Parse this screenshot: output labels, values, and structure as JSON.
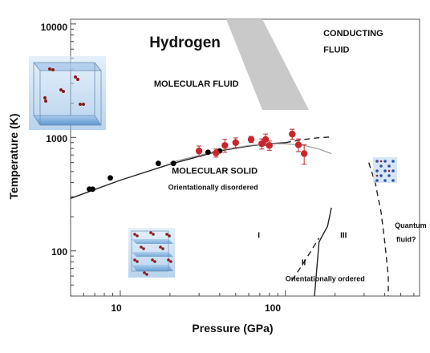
{
  "chart_data": {
    "type": "scatter",
    "title": "Hydrogen",
    "xlabel": "Pressure (GPa)",
    "ylabel": "Temperature (K)",
    "x_scale": "log",
    "y_scale": "log",
    "xlim": [
      5,
      650
    ],
    "ylim": [
      40,
      11000
    ],
    "x_ticks": [
      "10",
      "100"
    ],
    "y_ticks": [
      "100",
      "1000",
      "10000"
    ],
    "series": [
      {
        "marker": "black-dot",
        "x": [
          6.5,
          6.8,
          8.7,
          17,
          21,
          34,
          40
        ],
        "y": [
          350,
          350,
          440,
          590,
          590,
          740,
          760
        ]
      },
      {
        "marker": "red-dot-with-errorbar",
        "x": [
          30,
          38,
          43,
          50,
          62,
          72,
          76,
          80,
          110,
          120,
          130
        ],
        "y": [
          760,
          730,
          850,
          900,
          960,
          880,
          960,
          850,
          1070,
          860,
          720
        ],
        "y_err": [
          80,
          60,
          110,
          90,
          60,
          90,
          110,
          80,
          110,
          110,
          140
        ]
      }
    ],
    "phase_boundaries": [
      {
        "style": "solid-black",
        "x": [
          5,
          10,
          20,
          40,
          60,
          80,
          100
        ],
        "y": [
          290,
          420,
          580,
          760,
          840,
          880,
          900
        ]
      },
      {
        "style": "solid-gray",
        "x": [
          20,
          40,
          60,
          80,
          100,
          130,
          160,
          190
        ],
        "y": [
          600,
          770,
          850,
          880,
          880,
          850,
          790,
          720
        ]
      },
      {
        "style": "dashed-black",
        "x": [
          100,
          130,
          150,
          170,
          190
        ],
        "y": [
          900,
          960,
          985,
          1000,
          1010
        ]
      },
      {
        "style": "dashed-black",
        "x": [
          320,
          350,
          380,
          400,
          420,
          420
        ],
        "y": [
          600,
          400,
          220,
          120,
          60,
          40
        ]
      },
      {
        "style": "solid-black",
        "x": [
          150,
          160,
          180,
          190
        ],
        "y": [
          40,
          120,
          165,
          240
        ]
      },
      {
        "style": "dashed-black",
        "x": [
          110,
          130,
          160
        ],
        "y": [
          55,
          80,
          130
        ]
      }
    ],
    "annotations": [
      {
        "text": "Hydrogen",
        "x": 15,
        "y": 6200,
        "size": "large"
      },
      {
        "text": "MOLECULAR FLUID",
        "x": 16,
        "y": 2800
      },
      {
        "text": "CONDUCTING",
        "x": 170,
        "y": 7800
      },
      {
        "text": "FLUID",
        "x": 170,
        "y": 5600
      },
      {
        "text": "MOLECULAR SOLID",
        "x": 20.5,
        "y": 480
      },
      {
        "text": "Orientationally disordered",
        "x": 19.5,
        "y": 345
      },
      {
        "text": "I",
        "x": 68,
        "y": 130
      },
      {
        "text": "II",
        "x": 125,
        "y": 75
      },
      {
        "text": "III",
        "x": 215,
        "y": 130
      },
      {
        "text": "Orientationally ordered",
        "x": 100,
        "y": 54
      },
      {
        "text": "Quantum",
        "x": 460,
        "y": 160
      },
      {
        "text": "fluid?",
        "x": 470,
        "y": 120
      }
    ]
  }
}
